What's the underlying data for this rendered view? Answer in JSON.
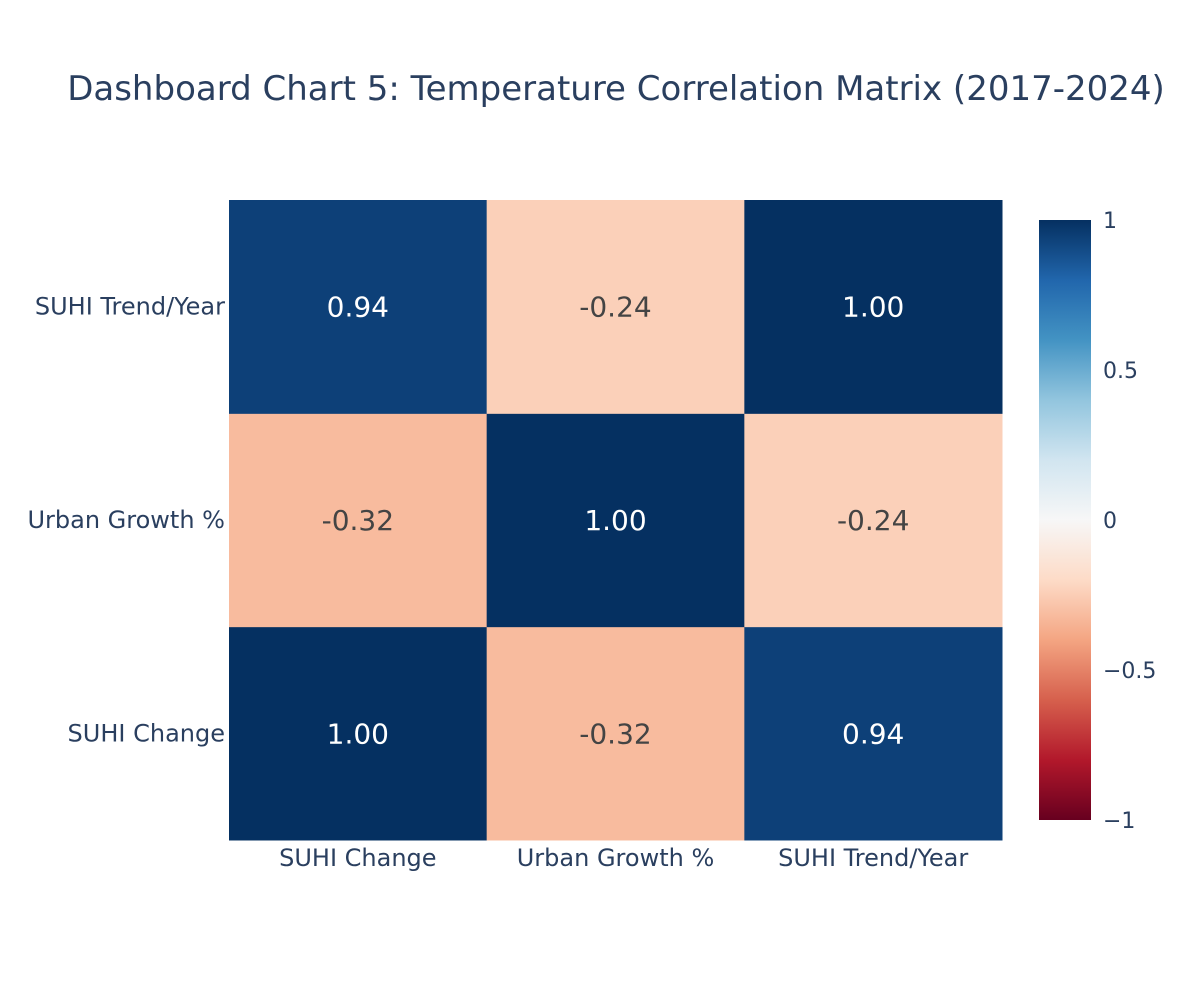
{
  "chart_data": {
    "type": "heatmap",
    "title": "Dashboard Chart 5: Temperature Correlation Matrix (2017-2024)",
    "x_categories": [
      "SUHI Change",
      "Urban Growth %",
      "SUHI Trend/Year"
    ],
    "y_categories": [
      "SUHI Change",
      "Urban Growth %",
      "SUHI Trend/Year"
    ],
    "z": [
      [
        1.0,
        -0.32,
        0.94
      ],
      [
        -0.32,
        1.0,
        -0.24
      ],
      [
        0.94,
        -0.24,
        1.0
      ]
    ],
    "cell_text": [
      [
        "1.00",
        "-0.32",
        "0.94"
      ],
      [
        "-0.32",
        "1.00",
        "-0.24"
      ],
      [
        "0.94",
        "-0.24",
        "1.00"
      ]
    ],
    "zrange": [
      -1,
      1
    ],
    "colorscale": "RdBu",
    "colorbar_ticks": [
      {
        "value": 1,
        "label": "1"
      },
      {
        "value": 0.5,
        "label": "0.5"
      },
      {
        "value": 0,
        "label": "0"
      },
      {
        "value": -0.5,
        "label": "−0.5"
      },
      {
        "value": -1,
        "label": "−1"
      }
    ]
  }
}
